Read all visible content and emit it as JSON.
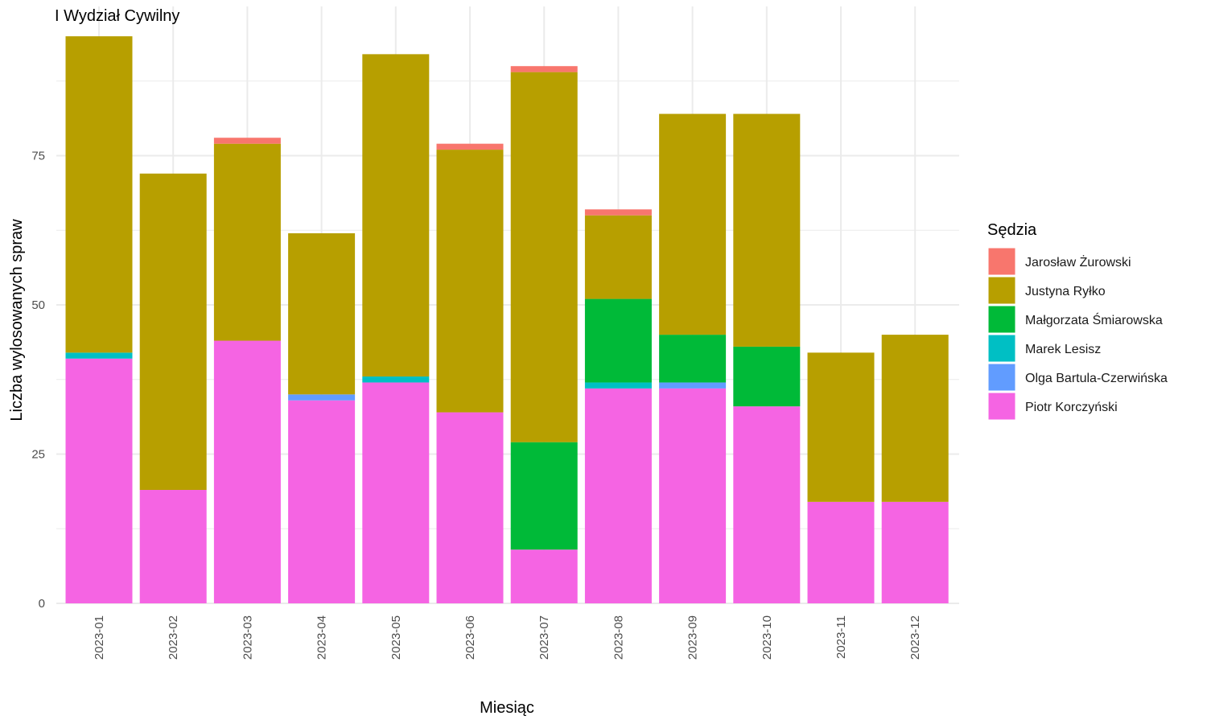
{
  "chart_data": {
    "type": "bar",
    "stacked": true,
    "title": "I Wydział Cywilny",
    "xlabel": "Miesiąc",
    "ylabel": "Liczba wylosowanych spraw",
    "ylim": [
      0,
      96
    ],
    "yticks": [
      0,
      25,
      50,
      75
    ],
    "grid": true,
    "legend_position": "right",
    "legend_title": "Sędzia",
    "categories": [
      "2023-01",
      "2023-02",
      "2023-03",
      "2023-04",
      "2023-05",
      "2023-06",
      "2023-07",
      "2023-08",
      "2023-09",
      "2023-10",
      "2023-11",
      "2023-12"
    ],
    "stack_order_bottom_to_top": [
      "Piotr Korczyński",
      "Olga Bartula-Czerwińska",
      "Marek Lesisz",
      "Małgorzata Śmiarowska",
      "Justyna Ryłko",
      "Jarosław Żurowski"
    ],
    "series": [
      {
        "name": "Jarosław Żurowski",
        "color": "#F8766D",
        "values": [
          0,
          0,
          1,
          0,
          0,
          1,
          1,
          1,
          0,
          0,
          0,
          0
        ]
      },
      {
        "name": "Justyna Ryłko",
        "color": "#B79F00",
        "values": [
          53,
          53,
          33,
          27,
          54,
          44,
          62,
          14,
          37,
          39,
          25,
          28
        ]
      },
      {
        "name": "Małgorzata Śmiarowska",
        "color": "#00BA38",
        "values": [
          0,
          0,
          0,
          0,
          0,
          0,
          18,
          14,
          8,
          10,
          0,
          0
        ]
      },
      {
        "name": "Marek Lesisz",
        "color": "#00BFC4",
        "values": [
          1,
          0,
          0,
          0,
          1,
          0,
          0,
          1,
          0,
          0,
          0,
          0
        ]
      },
      {
        "name": "Olga Bartula-Czerwińska",
        "color": "#619CFF",
        "values": [
          0,
          0,
          0,
          1,
          0,
          0,
          0,
          0,
          1,
          0,
          0,
          0
        ]
      },
      {
        "name": "Piotr Korczyński",
        "color": "#F564E3",
        "values": [
          41,
          19,
          44,
          34,
          37,
          32,
          9,
          36,
          36,
          33,
          17,
          17
        ]
      }
    ]
  }
}
